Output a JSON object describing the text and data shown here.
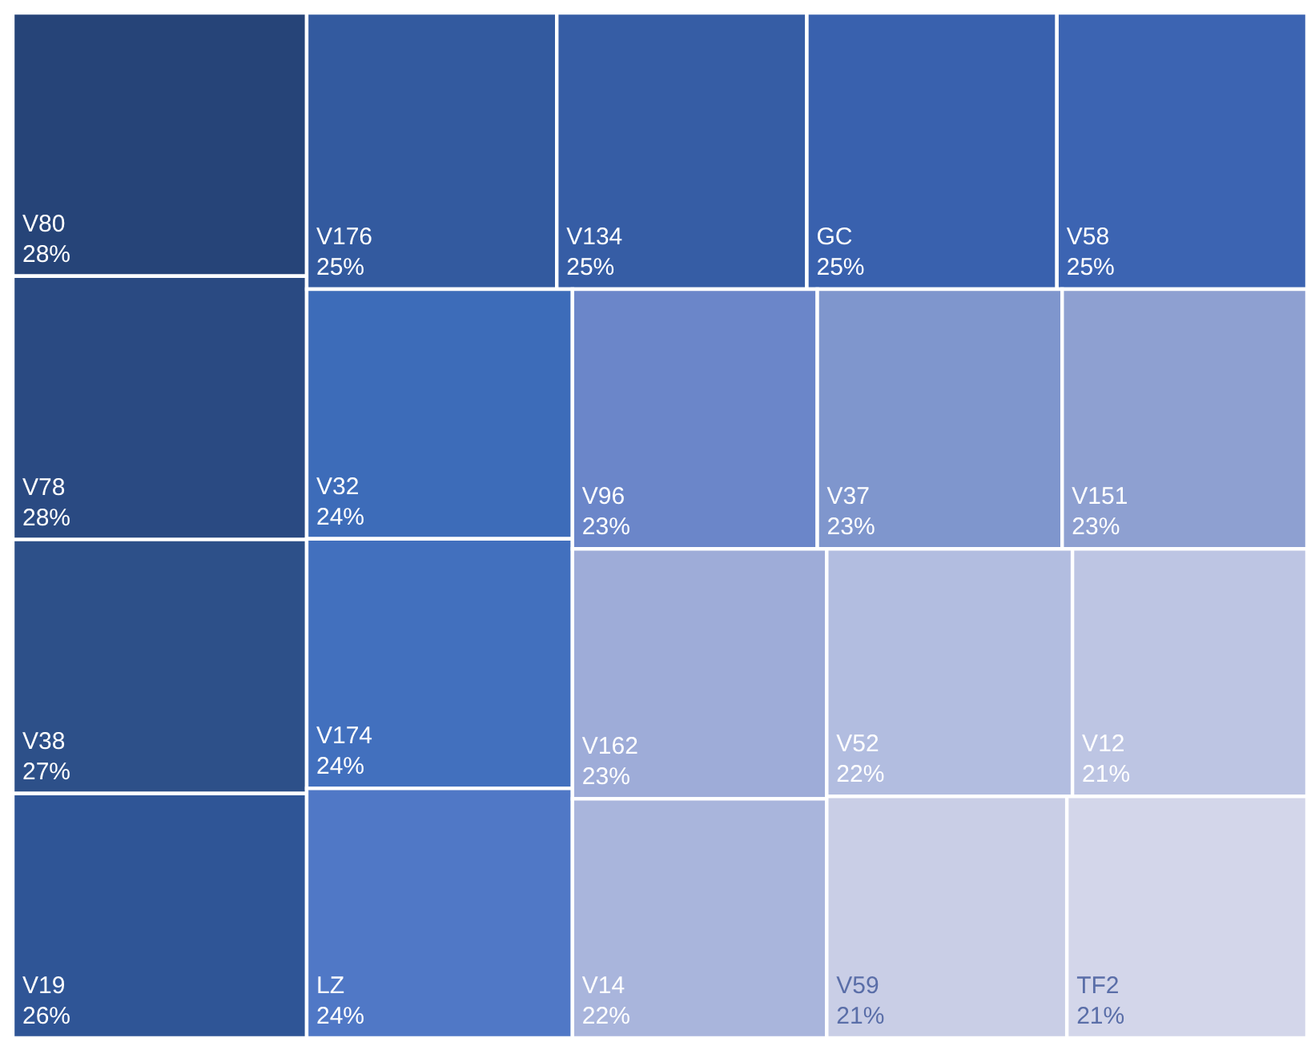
{
  "chart_data": {
    "type": "other",
    "categories": [
      "V80",
      "V78",
      "V38",
      "V19",
      "V176",
      "V134",
      "GC",
      "V58",
      "V32",
      "V174",
      "LZ",
      "V96",
      "V37",
      "V151",
      "V162",
      "V14",
      "V52",
      "V12",
      "V59",
      "TF2"
    ],
    "values": [
      28,
      28,
      27,
      26,
      25,
      25,
      25,
      25,
      24,
      24,
      24,
      23,
      23,
      23,
      23,
      22,
      22,
      21,
      21,
      21
    ],
    "value_labels": [
      "28%",
      "28%",
      "27%",
      "26%",
      "25%",
      "25%",
      "25%",
      "25%",
      "24%",
      "24%",
      "24%",
      "23%",
      "23%",
      "23%",
      "23%",
      "22%",
      "22%",
      "21%",
      "21%",
      "21%"
    ],
    "colors": [
      "#264478",
      "#2a4a82",
      "#2d5089",
      "#2f5596",
      "#335a9f",
      "#365da5",
      "#3961ae",
      "#3c64b2",
      "#3d6cb9",
      "#4270be",
      "#5078c6",
      "#6b86c9",
      "#7f96cd",
      "#8ea0d1",
      "#9eacd8",
      "#a9b5dc",
      "#b2bde0",
      "#bdc5e3",
      "#c9cee6",
      "#d3d6ea"
    ]
  }
}
